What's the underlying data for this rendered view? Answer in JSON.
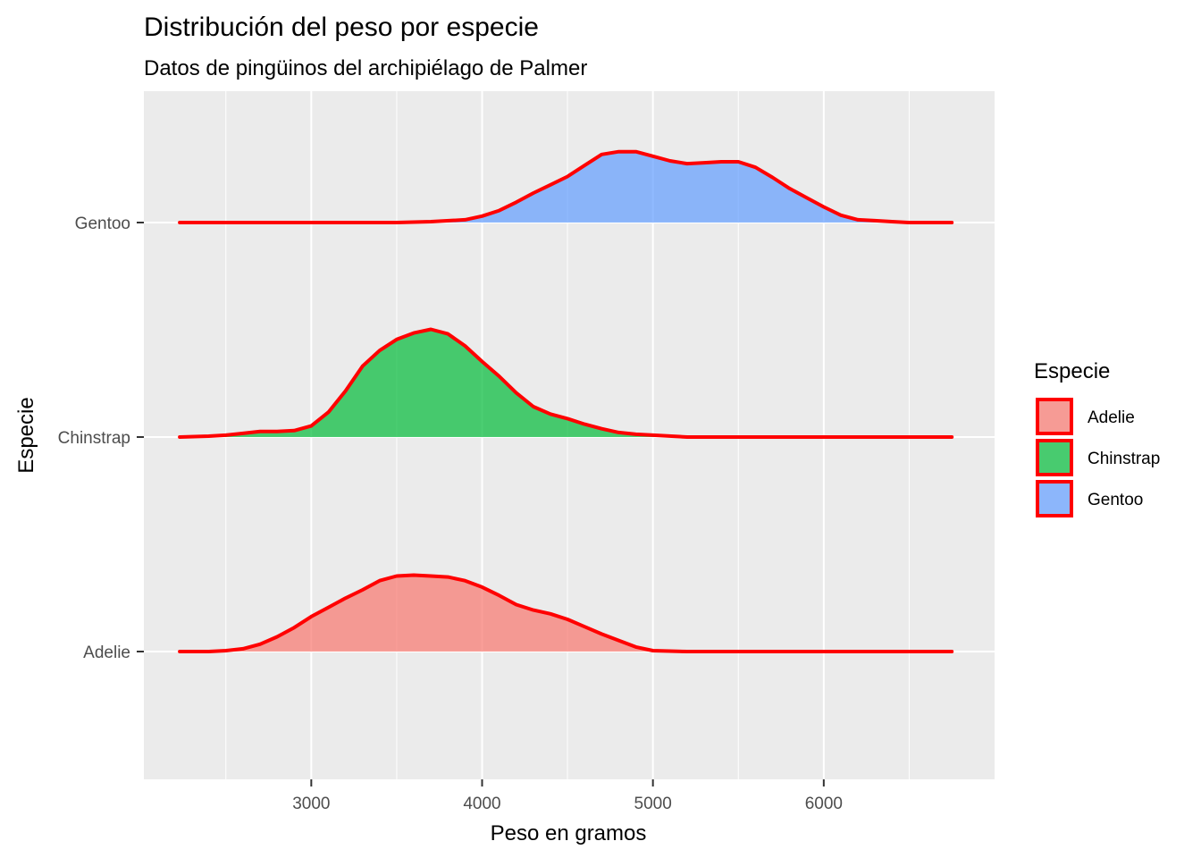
{
  "chart_data": {
    "type": "area",
    "subtype": "ridgeline density",
    "title": "Distribución del peso por especie",
    "subtitle": "Datos de pingüinos del archipiélago de Palmer",
    "xlabel": "Peso en gramos",
    "ylabel": "Especie",
    "xlim": [
      2020,
      7000
    ],
    "x_ticks": [
      "3000",
      "4000",
      "5000",
      "6000"
    ],
    "x_tick_values": [
      3000,
      4000,
      5000,
      6000
    ],
    "categories": [
      "Adelie",
      "Chinstrap",
      "Gentoo"
    ],
    "grid": true,
    "outline_color": "#ff0000",
    "legend": {
      "title": "Especie",
      "position": "right",
      "entries": [
        "Adelie",
        "Chinstrap",
        "Gentoo"
      ]
    },
    "series": [
      {
        "name": "Adelie",
        "color": "#f8766d",
        "density": [
          [
            2230,
            0.0
          ],
          [
            2400,
            0.0
          ],
          [
            2500,
            0.01
          ],
          [
            2600,
            0.03
          ],
          [
            2700,
            0.08
          ],
          [
            2800,
            0.16
          ],
          [
            2900,
            0.26
          ],
          [
            3000,
            0.38
          ],
          [
            3100,
            0.48
          ],
          [
            3200,
            0.58
          ],
          [
            3300,
            0.67
          ],
          [
            3400,
            0.77
          ],
          [
            3500,
            0.82
          ],
          [
            3600,
            0.83
          ],
          [
            3700,
            0.82
          ],
          [
            3800,
            0.81
          ],
          [
            3900,
            0.77
          ],
          [
            4000,
            0.7
          ],
          [
            4100,
            0.61
          ],
          [
            4200,
            0.51
          ],
          [
            4300,
            0.45
          ],
          [
            4400,
            0.41
          ],
          [
            4500,
            0.35
          ],
          [
            4600,
            0.27
          ],
          [
            4700,
            0.19
          ],
          [
            4800,
            0.12
          ],
          [
            4900,
            0.05
          ],
          [
            5000,
            0.01
          ],
          [
            5200,
            0.0
          ],
          [
            5600,
            0.0
          ],
          [
            6000,
            0.0
          ],
          [
            6750,
            0.0
          ]
        ]
      },
      {
        "name": "Chinstrap",
        "color": "#00ba38",
        "density": [
          [
            2230,
            0.0
          ],
          [
            2400,
            0.01
          ],
          [
            2500,
            0.02
          ],
          [
            2600,
            0.04
          ],
          [
            2700,
            0.06
          ],
          [
            2800,
            0.06
          ],
          [
            2900,
            0.07
          ],
          [
            3000,
            0.12
          ],
          [
            3100,
            0.27
          ],
          [
            3200,
            0.5
          ],
          [
            3300,
            0.77
          ],
          [
            3400,
            0.94
          ],
          [
            3500,
            1.06
          ],
          [
            3600,
            1.13
          ],
          [
            3700,
            1.17
          ],
          [
            3800,
            1.12
          ],
          [
            3900,
            0.99
          ],
          [
            4000,
            0.82
          ],
          [
            4100,
            0.66
          ],
          [
            4200,
            0.48
          ],
          [
            4300,
            0.33
          ],
          [
            4400,
            0.25
          ],
          [
            4500,
            0.2
          ],
          [
            4600,
            0.14
          ],
          [
            4700,
            0.09
          ],
          [
            4800,
            0.05
          ],
          [
            4900,
            0.03
          ],
          [
            5000,
            0.02
          ],
          [
            5200,
            0.0
          ],
          [
            5600,
            0.0
          ],
          [
            6000,
            0.0
          ],
          [
            6750,
            0.0
          ]
        ]
      },
      {
        "name": "Gentoo",
        "color": "#619cff",
        "density": [
          [
            2230,
            0.0
          ],
          [
            3000,
            0.0
          ],
          [
            3500,
            0.0
          ],
          [
            3700,
            0.01
          ],
          [
            3900,
            0.03
          ],
          [
            4000,
            0.07
          ],
          [
            4100,
            0.13
          ],
          [
            4200,
            0.22
          ],
          [
            4300,
            0.32
          ],
          [
            4400,
            0.41
          ],
          [
            4500,
            0.5
          ],
          [
            4600,
            0.62
          ],
          [
            4700,
            0.74
          ],
          [
            4800,
            0.77
          ],
          [
            4900,
            0.77
          ],
          [
            5000,
            0.72
          ],
          [
            5100,
            0.67
          ],
          [
            5200,
            0.64
          ],
          [
            5300,
            0.65
          ],
          [
            5400,
            0.66
          ],
          [
            5500,
            0.66
          ],
          [
            5600,
            0.6
          ],
          [
            5700,
            0.49
          ],
          [
            5800,
            0.37
          ],
          [
            5900,
            0.27
          ],
          [
            6000,
            0.17
          ],
          [
            6100,
            0.08
          ],
          [
            6200,
            0.03
          ],
          [
            6300,
            0.02
          ],
          [
            6400,
            0.01
          ],
          [
            6500,
            0.0
          ],
          [
            6750,
            0.0
          ]
        ]
      }
    ]
  }
}
